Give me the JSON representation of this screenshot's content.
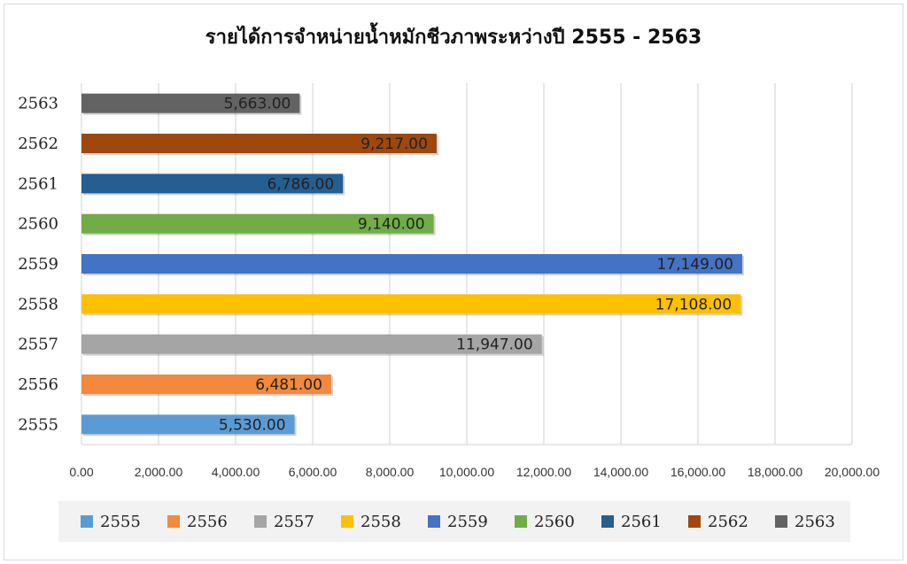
{
  "chart_data": {
    "type": "bar",
    "orientation": "horizontal",
    "title": "รายได้การจำหน่ายน้ำหมักชีวภาพระหว่างปี 2555 - 2563",
    "categories": [
      "2555",
      "2556",
      "2557",
      "2558",
      "2559",
      "2560",
      "2561",
      "2562",
      "2563"
    ],
    "values": [
      5530,
      6481,
      11947,
      17108,
      17149,
      9140,
      6786,
      9217,
      5663
    ],
    "data_labels": [
      "5,530.00",
      "6,481.00",
      "11,947.00",
      "17,108.00",
      "17,149.00",
      "9,140.00",
      "6,786.00",
      "9,217.00",
      "5,663.00"
    ],
    "colors": [
      "#5B9BD5",
      "#F4883C",
      "#A5A5A5",
      "#FFC000",
      "#4472C4",
      "#70AD47",
      "#255E91",
      "#9E480E",
      "#636363"
    ],
    "xlim": [
      0,
      20000
    ],
    "x_ticks": [
      0,
      2000,
      4000,
      6000,
      8000,
      10000,
      12000,
      14000,
      16000,
      18000,
      20000
    ],
    "x_tick_labels": [
      "0.00",
      "2,000.00",
      "4,000.00",
      "6,000.00",
      "8,000.00",
      "10,000.00",
      "12,000.00",
      "14,000.00",
      "16,000.00",
      "18,000.00",
      "20,000.00"
    ],
    "grid": true,
    "legend": {
      "position": "bottom",
      "entries": [
        "2555",
        "2556",
        "2557",
        "2558",
        "2559",
        "2560",
        "2561",
        "2562",
        "2563"
      ]
    }
  }
}
